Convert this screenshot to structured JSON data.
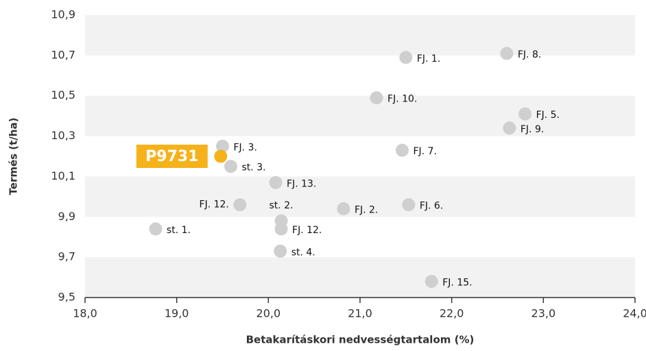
{
  "chart_data": {
    "type": "scatter",
    "x_label": "Betakarításkori nedvességtartalom (%)",
    "y_label": "Termés (t/ha)",
    "xlim": [
      18,
      24
    ],
    "ylim": [
      9.5,
      10.9
    ],
    "xticks": [
      {
        "value": 18,
        "label": "18,0"
      },
      {
        "value": 19,
        "label": "19,0"
      },
      {
        "value": 20,
        "label": "20,0"
      },
      {
        "value": 21,
        "label": "21,0"
      },
      {
        "value": 22,
        "label": "22,0"
      },
      {
        "value": 23,
        "label": "23,0"
      },
      {
        "value": 24,
        "label": "24,0"
      }
    ],
    "yticks": [
      {
        "value": 9.5,
        "label": "9,5"
      },
      {
        "value": 9.7,
        "label": "9,7"
      },
      {
        "value": 9.9,
        "label": "9,9"
      },
      {
        "value": 10.1,
        "label": "10,1"
      },
      {
        "value": 10.3,
        "label": "10,3"
      },
      {
        "value": 10.5,
        "label": "10,5"
      },
      {
        "value": 10.7,
        "label": "10,7"
      },
      {
        "value": 10.9,
        "label": "10,9"
      }
    ],
    "series": [
      {
        "color": "#cfcfcf",
        "point_labels": [
          "FJ. 1.",
          "FJ. 8.",
          "FJ. 10.",
          "FJ. 5.",
          "FJ. 9.",
          "FJ. 3.",
          "st. 3.",
          "FJ. 7.",
          "FJ. 13.",
          "FJ. 12.",
          "st. 2.",
          "FJ. 2.",
          "FJ. 6.",
          "st. 1.",
          "FJ. 12.",
          "st. 4.",
          "FJ. 15."
        ],
        "x": [
          21.5,
          22.6,
          21.18,
          22.8,
          22.63,
          19.5,
          19.59,
          21.46,
          20.08,
          19.69,
          20.14,
          20.82,
          21.53,
          18.77,
          20.14,
          20.13,
          21.78
        ],
        "values": [
          10.69,
          10.71,
          10.49,
          10.41,
          10.34,
          10.25,
          10.15,
          10.23,
          10.07,
          9.96,
          9.88,
          9.94,
          9.96,
          9.84,
          9.84,
          9.73,
          9.58
        ]
      },
      {
        "name": "P9731",
        "color": "#f5b21b",
        "x": [
          19.48
        ],
        "values": [
          10.2
        ]
      }
    ]
  }
}
